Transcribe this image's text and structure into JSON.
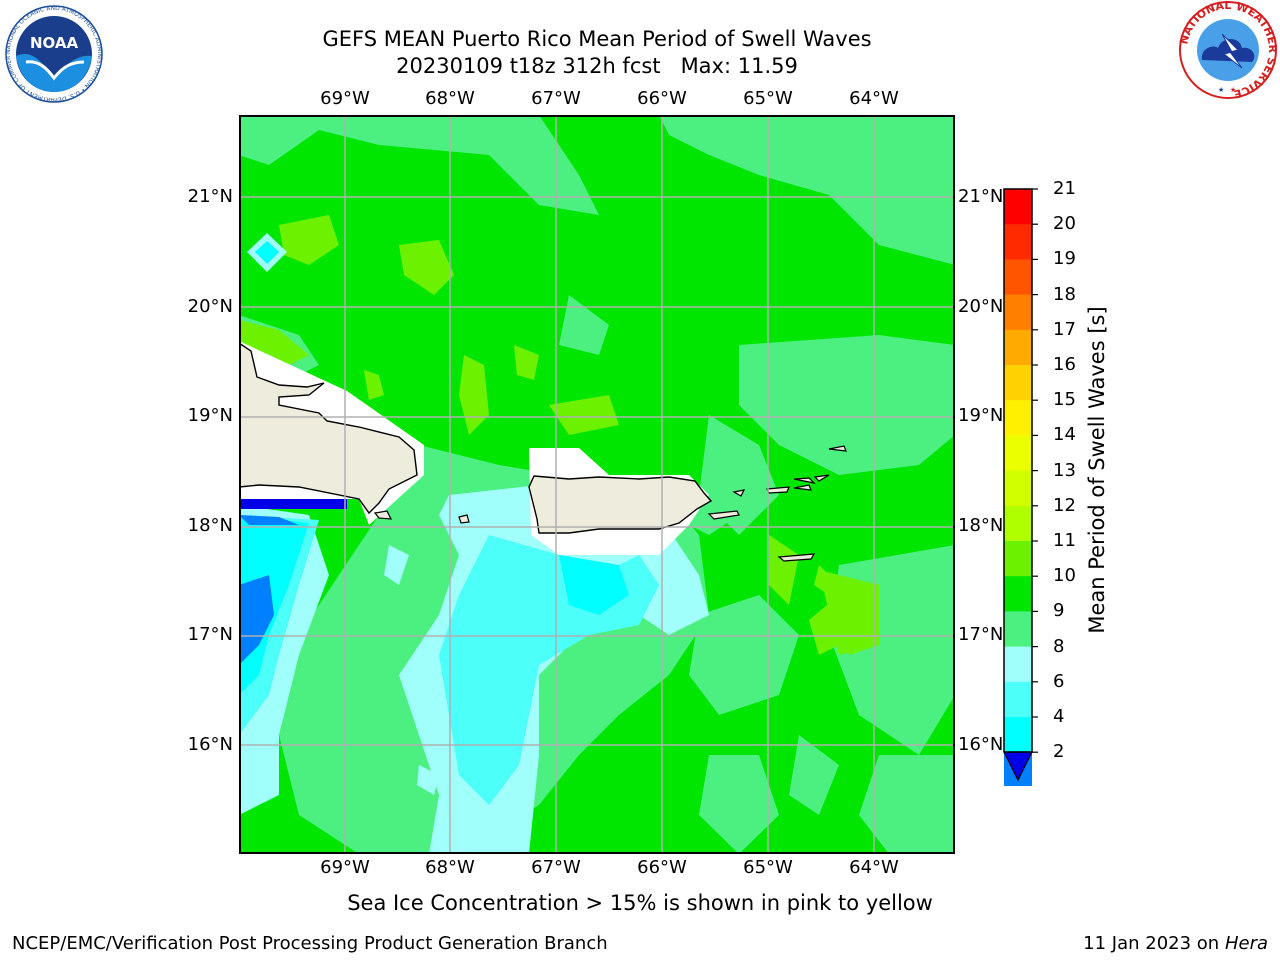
{
  "title": {
    "line1": "GEFS MEAN Puerto Rico Mean Period of Swell Waves",
    "line2": "20230109 t18z 312h fcst   Max: 11.59"
  },
  "map": {
    "lon_labels": [
      "69°W",
      "68°W",
      "67°W",
      "66°W",
      "65°W",
      "64°W"
    ],
    "lat_labels": [
      "21°N",
      "20°N",
      "19°N",
      "18°N",
      "17°N",
      "16°N"
    ],
    "grid": true,
    "land_color": "#eeecdc",
    "region": [
      "Hispaniola (east)",
      "Puerto Rico",
      "Virgin Islands"
    ]
  },
  "colorbar": {
    "label": "Mean Period of Swell Waves [s]",
    "ticks": [
      "21",
      "20",
      "19",
      "18",
      "17",
      "16",
      "15",
      "14",
      "13",
      "12",
      "11",
      "10",
      "9",
      "8",
      "6",
      "4",
      "2"
    ],
    "colors": [
      "#ff0000",
      "#ff2a00",
      "#ff5500",
      "#ff8000",
      "#ffaa00",
      "#ffd200",
      "#fff000",
      "#ecff00",
      "#d2ff00",
      "#b0ff00",
      "#6cf200",
      "#00e600",
      "#4cf080",
      "#a0fffa",
      "#4cfff8",
      "#00ffff",
      "#0080ff"
    ],
    "extend_color": "#0000e8"
  },
  "note": "Sea Ice Concentration > 15% is shown in pink to yellow",
  "footer": {
    "left": "NCEP/EMC/Verification Post Processing Product Generation Branch",
    "date": "11 Jan 2023 on ",
    "host": "Hera"
  },
  "logos": {
    "noaa_text": "NOAA",
    "noaa_ring": "NATIONAL OCEANIC AND ATMOSPHERIC ADMINISTRATION • U.S. DEPARTMENT OF COMMERCE",
    "nws_ring": "NATIONAL WEATHER SERVICE"
  }
}
